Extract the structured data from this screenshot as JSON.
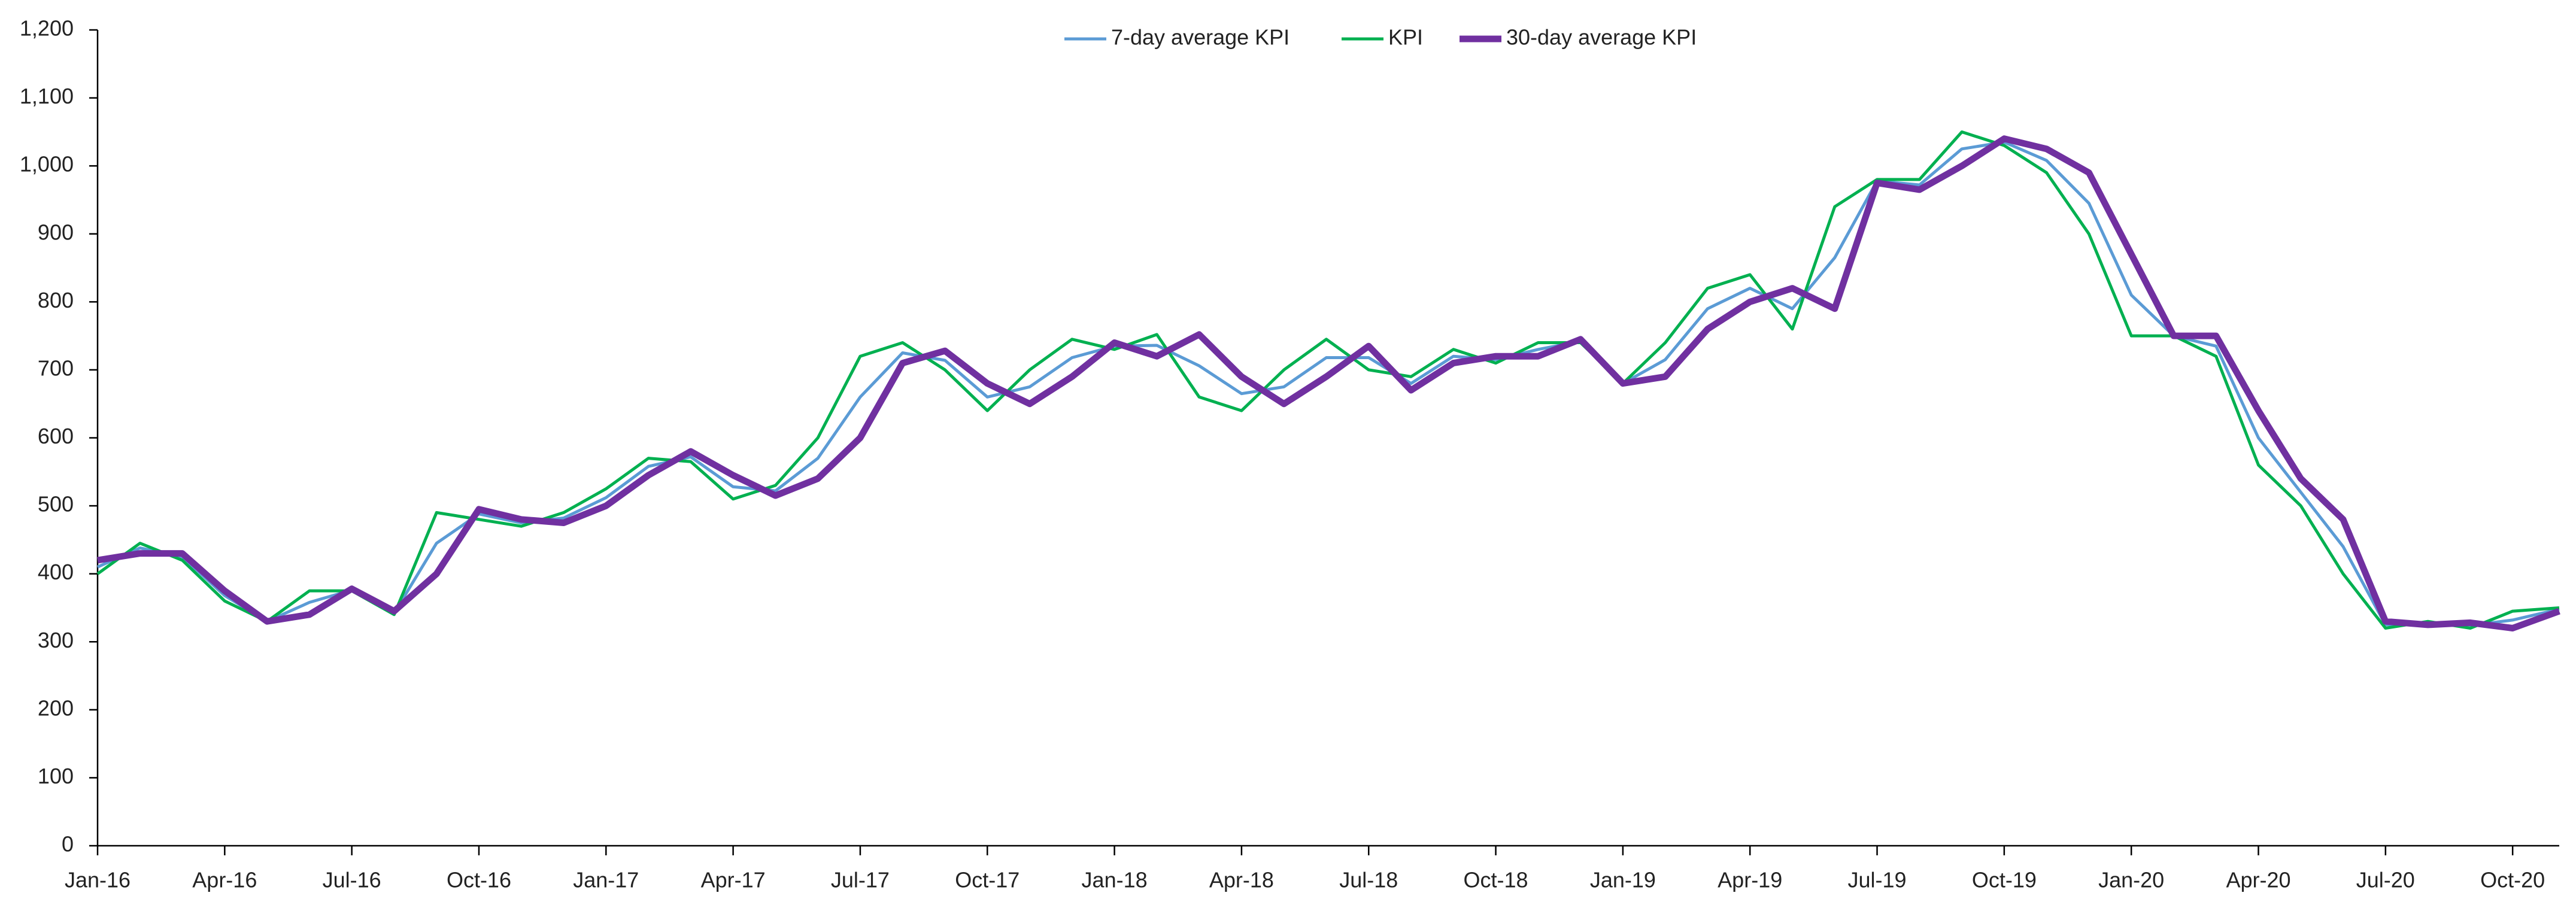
{
  "chart_data": {
    "type": "line",
    "x": [
      0,
      1,
      2,
      3,
      4,
      5,
      6,
      7,
      8,
      9,
      10,
      11,
      12,
      13,
      14,
      15,
      16,
      17,
      18,
      19,
      20,
      21,
      22,
      23,
      24,
      25,
      26,
      27,
      28,
      29,
      30,
      31,
      32,
      33,
      34,
      35,
      36,
      37,
      38,
      39,
      40,
      41,
      42,
      43,
      44,
      45,
      46,
      47,
      48,
      49,
      50,
      51,
      52,
      53,
      54,
      55,
      56,
      57,
      58.1
    ],
    "series": [
      {
        "name": "7-day average KPI",
        "color": "#5b9bd5",
        "width": 5,
        "values": [
          410,
          438,
          425,
          368,
          330,
          358,
          376,
          342,
          445,
          488,
          475,
          482,
          512,
          558,
          572,
          528,
          522,
          570,
          660,
          725,
          714,
          660,
          675,
          718,
          735,
          736,
          706,
          665,
          675,
          718,
          718,
          680,
          720,
          715,
          730,
          742,
          680,
          715,
          790,
          820,
          790,
          865,
          978,
          972,
          1025,
          1035,
          1008,
          945,
          810,
          750,
          735,
          600,
          520,
          440,
          325,
          328,
          324,
          332,
          348
        ]
      },
      {
        "name": "KPI",
        "color": "#00b050",
        "width": 5,
        "values": [
          400,
          445,
          420,
          360,
          330,
          375,
          375,
          340,
          490,
          480,
          470,
          490,
          525,
          570,
          565,
          510,
          530,
          600,
          720,
          740,
          700,
          640,
          700,
          745,
          730,
          752,
          660,
          640,
          700,
          745,
          700,
          690,
          730,
          710,
          740,
          740,
          680,
          740,
          820,
          840,
          760,
          940,
          980,
          980,
          1050,
          1030,
          990,
          900,
          750,
          750,
          720,
          560,
          500,
          400,
          320,
          330,
          320,
          345,
          350
        ]
      },
      {
        "name": "30-day average KPI",
        "color": "#7030a0",
        "width": 11,
        "values": [
          420,
          430,
          430,
          375,
          330,
          340,
          378,
          345,
          400,
          495,
          480,
          475,
          500,
          545,
          580,
          545,
          515,
          540,
          600,
          710,
          728,
          680,
          650,
          690,
          740,
          720,
          752,
          690,
          650,
          690,
          735,
          670,
          710,
          720,
          720,
          745,
          680,
          690,
          760,
          800,
          820,
          790,
          975,
          965,
          1000,
          1040,
          1025,
          990,
          870,
          750,
          750,
          640,
          540,
          480,
          330,
          325,
          328,
          320,
          345
        ]
      }
    ],
    "xlim": [
      0,
      58.1
    ],
    "xticks": [
      {
        "value": 0,
        "label": "Jan-16"
      },
      {
        "value": 3,
        "label": "Apr-16"
      },
      {
        "value": 6,
        "label": "Jul-16"
      },
      {
        "value": 9,
        "label": "Oct-16"
      },
      {
        "value": 12,
        "label": "Jan-17"
      },
      {
        "value": 15,
        "label": "Apr-17"
      },
      {
        "value": 18,
        "label": "Jul-17"
      },
      {
        "value": 21,
        "label": "Oct-17"
      },
      {
        "value": 24,
        "label": "Jan-18"
      },
      {
        "value": 27,
        "label": "Apr-18"
      },
      {
        "value": 30,
        "label": "Jul-18"
      },
      {
        "value": 33,
        "label": "Oct-18"
      },
      {
        "value": 36,
        "label": "Jan-19"
      },
      {
        "value": 39,
        "label": "Apr-19"
      },
      {
        "value": 42,
        "label": "Jul-19"
      },
      {
        "value": 45,
        "label": "Oct-19"
      },
      {
        "value": 48,
        "label": "Jan-20"
      },
      {
        "value": 51,
        "label": "Apr-20"
      },
      {
        "value": 54,
        "label": "Jul-20"
      },
      {
        "value": 57,
        "label": "Oct-20"
      }
    ],
    "ylim": [
      0,
      1200
    ],
    "yticks": [
      0,
      100,
      200,
      300,
      400,
      500,
      600,
      700,
      800,
      900,
      {
        "value": 1000,
        "label": "1,000"
      },
      {
        "value": 1100,
        "label": "1,100"
      },
      {
        "value": 1200,
        "label": "1,200"
      }
    ],
    "legend": "top"
  }
}
